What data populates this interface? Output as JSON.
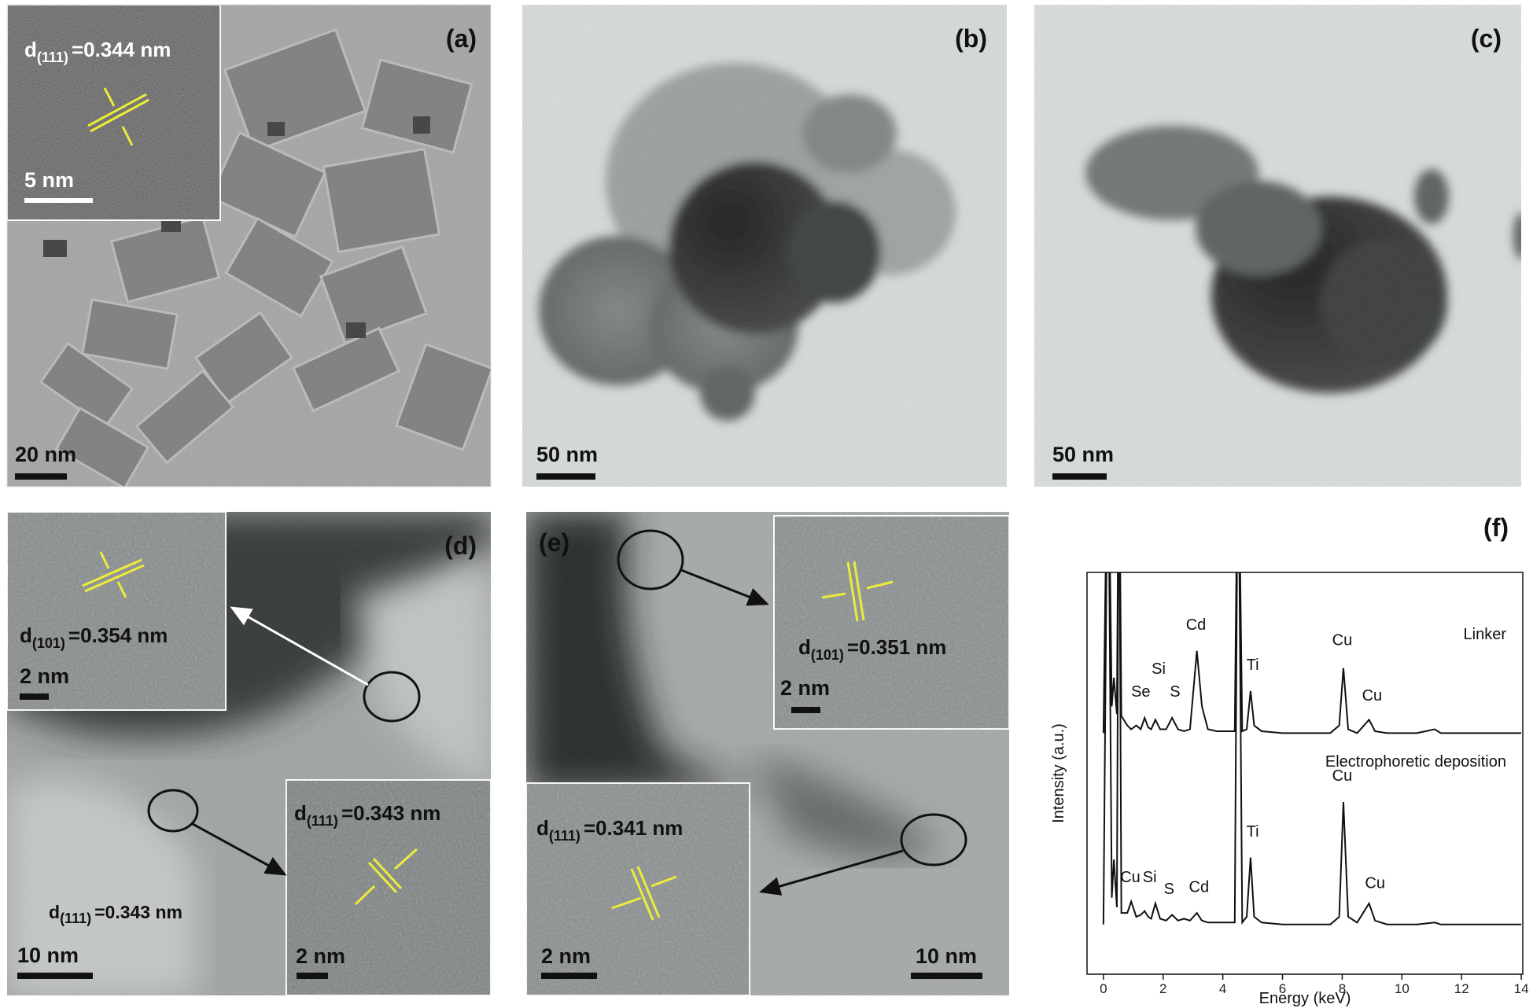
{
  "panels": {
    "a": {
      "label": "(a)",
      "scale_bar": "20 nm",
      "inset": {
        "d": "d",
        "plane": "(111)",
        "spacing": "=0.344 nm",
        "scale_bar": "5 nm"
      }
    },
    "b": {
      "label": "(b)",
      "scale_bar": "50 nm"
    },
    "c": {
      "label": "(c)",
      "scale_bar": "50 nm"
    },
    "d": {
      "label": "(d)",
      "scale_bar": "10 nm",
      "insets": [
        {
          "d": "d",
          "plane": "(101)",
          "spacing": "=0.354 nm",
          "scale_bar": "2 nm"
        },
        {
          "d": "d",
          "plane": "(111)",
          "spacing": "=0.343 nm",
          "scale_bar": "2 nm"
        }
      ],
      "annotation": {
        "d": "d",
        "plane": "(111)",
        "spacing": "=0.343 nm"
      }
    },
    "e": {
      "label": "(e)",
      "scale_bar": "10 nm",
      "insets": [
        {
          "d": "d",
          "plane": "(101)",
          "spacing": "=0.351 nm",
          "scale_bar": "2 nm"
        },
        {
          "d": "d",
          "plane": "(111)",
          "spacing": "=0.341 nm",
          "scale_bar": "2 nm"
        }
      ]
    },
    "f": {
      "label": "(f)"
    }
  },
  "chart_data": {
    "type": "line",
    "xlabel": "Energy (keV)",
    "ylabel": "Intensity (a.u.)",
    "xlim": [
      -0.55,
      14.05
    ],
    "ylim": [
      0,
      210
    ],
    "xticks": [
      0,
      2,
      4,
      6,
      8,
      10,
      12,
      14
    ],
    "x": [
      0,
      0.15,
      0.28,
      0.35,
      0.45,
      0.52,
      0.6,
      0.8,
      0.93,
      1.1,
      1.25,
      1.38,
      1.5,
      1.6,
      1.74,
      1.9,
      2.1,
      2.3,
      2.5,
      2.7,
      2.9,
      3.13,
      3.3,
      3.5,
      3.8,
      4.2,
      4.4,
      4.51,
      4.65,
      4.8,
      4.93,
      5.05,
      5.3,
      6,
      7,
      7.6,
      7.9,
      8.04,
      8.2,
      8.5,
      8.9,
      9.1,
      9.5,
      10.5,
      11.1,
      11.3,
      12,
      13,
      14
    ],
    "series": [
      {
        "name": "Linker",
        "color": "#111111",
        "values": [
          126,
          300,
          140,
          155,
          136,
          300,
          135,
          130,
          128,
          130,
          128,
          134,
          129,
          128,
          133,
          128,
          128,
          134,
          128,
          127,
          128,
          169,
          140,
          128,
          127,
          127,
          127,
          300,
          127,
          128,
          148,
          130,
          127,
          126,
          126,
          126,
          130,
          160,
          128,
          126,
          133,
          127,
          126,
          126,
          128,
          126,
          126,
          126,
          126
        ]
      },
      {
        "name": "Electrophoretic deposition",
        "color": "#111111",
        "values": [
          26,
          300,
          40,
          60,
          35,
          300,
          32,
          32,
          38,
          30,
          31,
          33,
          30,
          29,
          37,
          29,
          28,
          31,
          28,
          29,
          28,
          32,
          28,
          27,
          27,
          27,
          27,
          300,
          27,
          30,
          61,
          30,
          27,
          26,
          26,
          26,
          30,
          90,
          30,
          27,
          37,
          28,
          26,
          26,
          27,
          26,
          26,
          26,
          26
        ]
      }
    ],
    "annotations": [
      {
        "text": "Se",
        "x": 1.25,
        "y": 145
      },
      {
        "text": "Si",
        "x": 1.85,
        "y": 157
      },
      {
        "text": "S",
        "x": 2.4,
        "y": 145
      },
      {
        "text": "Cd",
        "x": 3.1,
        "y": 180
      },
      {
        "text": "Ti",
        "x": 5.0,
        "y": 159
      },
      {
        "text": "Cu",
        "x": 8.0,
        "y": 172
      },
      {
        "text": "Cu",
        "x": 9.0,
        "y": 143
      },
      {
        "text": "Cu",
        "x": 0.9,
        "y": 48
      },
      {
        "text": "Si",
        "x": 1.55,
        "y": 48
      },
      {
        "text": "S",
        "x": 2.2,
        "y": 42
      },
      {
        "text": "Cd",
        "x": 3.2,
        "y": 43
      },
      {
        "text": "Ti",
        "x": 5.0,
        "y": 72
      },
      {
        "text": "Cu",
        "x": 8.0,
        "y": 101
      },
      {
        "text": "Cu",
        "x": 9.1,
        "y": 45
      }
    ]
  }
}
